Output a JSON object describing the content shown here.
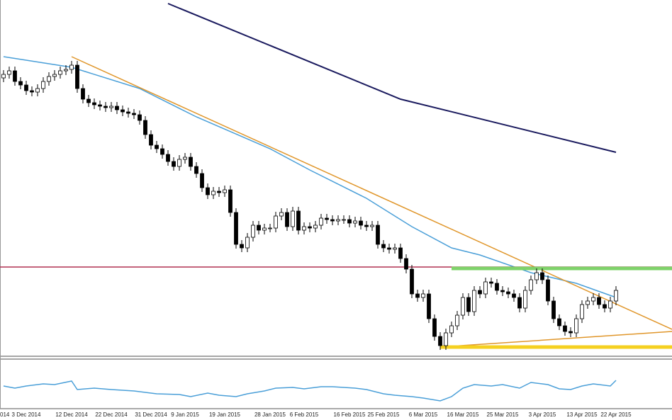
{
  "chart_data": {
    "type": "candlestick",
    "categories": [
      "014",
      null,
      null,
      null,
      "3 Dec 2014",
      null,
      null,
      null,
      null,
      null,
      null,
      null,
      "12 Dec 2014",
      null,
      null,
      null,
      null,
      null,
      null,
      "22 Dec 2014",
      null,
      null,
      null,
      null,
      null,
      null,
      "31 Dec 2014",
      null,
      null,
      null,
      null,
      null,
      "9 Jan 2015",
      null,
      null,
      null,
      null,
      null,
      null,
      "19 Jan 2015",
      null,
      null,
      null,
      null,
      null,
      null,
      null,
      "28 Jan 2015",
      null,
      null,
      null,
      null,
      null,
      "6 Feb 2015",
      null,
      null,
      null,
      null,
      null,
      null,
      null,
      "16 Feb 2015",
      null,
      null,
      null,
      null,
      null,
      "25 Feb 2015",
      null,
      null,
      null,
      null,
      null,
      null,
      "6 Mar 2015",
      null,
      null,
      null,
      null,
      null,
      null,
      "16 Mar 2015",
      null,
      null,
      null,
      null,
      null,
      null,
      "25 Mar 2015",
      null,
      null,
      null,
      null,
      null,
      null,
      "3 Apr 2015",
      null,
      null,
      null,
      null,
      null,
      null,
      "13 Apr 2015",
      null,
      null,
      null,
      null,
      null,
      "22 Apr 2015"
    ],
    "open": [
      390,
      395,
      400,
      385,
      380,
      372,
      370,
      375,
      385,
      392,
      395,
      400,
      402,
      408,
      375,
      360,
      355,
      352,
      350,
      348,
      350,
      345,
      342,
      340,
      338,
      330,
      310,
      295,
      290,
      282,
      272,
      265,
      275,
      278,
      265,
      255,
      235,
      225,
      230,
      228,
      232,
      200,
      155,
      150,
      165,
      182,
      175,
      178,
      178,
      195,
      200,
      180,
      202,
      175,
      180,
      178,
      182,
      192,
      190,
      188,
      190,
      190,
      185,
      188,
      182,
      180,
      182,
      155,
      150,
      148,
      150,
      135,
      120,
      85,
      80,
      85,
      50,
      25,
      12,
      30,
      40,
      55,
      80,
      60,
      90,
      85,
      102,
      100,
      90,
      88,
      85,
      80,
      65,
      90,
      105,
      115,
      105,
      75,
      50,
      40,
      32,
      30,
      50,
      70,
      75,
      80,
      70,
      65,
      75
    ],
    "high": [
      401,
      406,
      406,
      391,
      386,
      378,
      381,
      391,
      398,
      401,
      406,
      408,
      414,
      414,
      381,
      366,
      361,
      358,
      356,
      356,
      356,
      351,
      348,
      346,
      344,
      336,
      316,
      301,
      296,
      288,
      278,
      281,
      284,
      284,
      271,
      261,
      241,
      236,
      236,
      238,
      238,
      206,
      161,
      171,
      188,
      188,
      184,
      184,
      201,
      206,
      206,
      208,
      208,
      186,
      186,
      188,
      198,
      198,
      196,
      196,
      196,
      196,
      194,
      194,
      188,
      188,
      188,
      161,
      156,
      156,
      156,
      141,
      126,
      91,
      91,
      91,
      56,
      31,
      36,
      46,
      61,
      86,
      86,
      96,
      96,
      108,
      108,
      106,
      96,
      94,
      91,
      86,
      96,
      111,
      121,
      121,
      111,
      81,
      56,
      46,
      38,
      56,
      76,
      81,
      86,
      86,
      76,
      81,
      96
    ],
    "low": [
      384,
      389,
      379,
      374,
      366,
      364,
      364,
      369,
      379,
      386,
      389,
      394,
      396,
      369,
      354,
      349,
      346,
      344,
      342,
      342,
      339,
      336,
      334,
      332,
      324,
      304,
      289,
      284,
      276,
      266,
      259,
      259,
      269,
      259,
      249,
      229,
      219,
      219,
      222,
      222,
      194,
      149,
      144,
      144,
      159,
      169,
      169,
      172,
      172,
      189,
      174,
      174,
      169,
      169,
      172,
      172,
      176,
      184,
      182,
      182,
      184,
      179,
      179,
      176,
      174,
      174,
      149,
      144,
      142,
      142,
      129,
      114,
      79,
      74,
      74,
      44,
      19,
      6,
      6,
      24,
      34,
      49,
      54,
      54,
      79,
      79,
      94,
      84,
      82,
      79,
      74,
      59,
      59,
      84,
      99,
      99,
      69,
      44,
      34,
      26,
      24,
      24,
      44,
      64,
      69,
      64,
      59,
      59,
      69
    ],
    "close": [
      395,
      400,
      385,
      380,
      372,
      370,
      375,
      385,
      392,
      395,
      400,
      402,
      408,
      375,
      360,
      355,
      352,
      350,
      348,
      350,
      345,
      342,
      340,
      338,
      330,
      310,
      295,
      290,
      282,
      272,
      265,
      275,
      278,
      265,
      255,
      235,
      225,
      230,
      228,
      232,
      200,
      155,
      150,
      165,
      182,
      175,
      178,
      178,
      195,
      200,
      180,
      202,
      175,
      180,
      178,
      182,
      192,
      190,
      188,
      190,
      190,
      185,
      188,
      182,
      180,
      182,
      155,
      150,
      148,
      150,
      135,
      120,
      85,
      80,
      85,
      50,
      25,
      12,
      30,
      40,
      55,
      80,
      60,
      90,
      85,
      102,
      100,
      90,
      88,
      85,
      80,
      65,
      90,
      105,
      115,
      105,
      75,
      50,
      40,
      32,
      30,
      50,
      70,
      75,
      80,
      70,
      65,
      75,
      90
    ],
    "color_up": "#ffffff",
    "color_down": "#000000",
    "xlim": [
      -0.625,
      117.875
    ],
    "ylim": [
      0,
      500
    ],
    "lines": [
      {
        "color": "#1a1a5e",
        "width": 2,
        "x": [
          29,
          70,
          108
        ],
        "values": [
          495,
          360,
          285
        ]
      },
      {
        "color": "#4a9fd8",
        "width": 1.5,
        "x": [
          0,
          12,
          24,
          34,
          47,
          54,
          64,
          72,
          79,
          84,
          93,
          101,
          108
        ],
        "values": [
          420,
          405,
          375,
          335,
          290,
          260,
          220,
          180,
          150,
          140,
          115,
          100,
          80
        ]
      },
      {
        "color": "#e0962a",
        "width": 1.5,
        "x": [
          12,
          117.875
        ],
        "values": [
          420,
          35
        ]
      },
      {
        "color": "#e0962a",
        "width": 1.5,
        "x": [
          77,
          117.875
        ],
        "values": [
          10,
          32
        ]
      },
      {
        "color": "#b03050",
        "width": 1.5,
        "x": [
          -0.625,
          117.875
        ],
        "values": [
          123,
          123
        ]
      },
      {
        "color": "#7ed36a",
        "width": 5,
        "x": [
          79,
          117.875
        ],
        "values": [
          121,
          121
        ]
      },
      {
        "color": "#f5d020",
        "width": 5,
        "x": [
          77,
          117.875
        ],
        "values": [
          10,
          10
        ]
      }
    ],
    "oscillator": {
      "type": "line",
      "color": "#4a9fd8",
      "ylim": [
        0,
        100
      ],
      "x": [
        0,
        2,
        4,
        7,
        9,
        12,
        13,
        16,
        19,
        23,
        27,
        31,
        33,
        36,
        38,
        41,
        43,
        46,
        48,
        51,
        53,
        56,
        58,
        62,
        64,
        67,
        69,
        72,
        74,
        77,
        79,
        81,
        83,
        86,
        88,
        91,
        93,
        96,
        98,
        100,
        102,
        104,
        107,
        108
      ],
      "values": [
        50,
        44,
        50,
        56,
        54,
        64,
        40,
        44,
        40,
        36,
        28,
        26,
        20,
        30,
        24,
        20,
        28,
        36,
        44,
        46,
        42,
        48,
        48,
        44,
        40,
        28,
        24,
        20,
        16,
        8,
        20,
        44,
        54,
        50,
        54,
        44,
        60,
        54,
        42,
        40,
        50,
        56,
        50,
        66
      ]
    }
  }
}
